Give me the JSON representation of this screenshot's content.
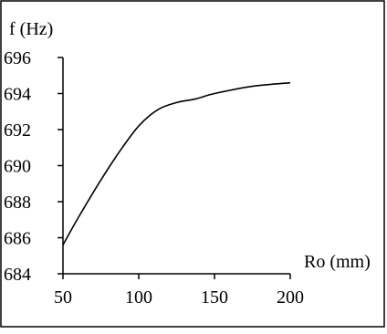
{
  "chart_data": {
    "type": "line",
    "title": "",
    "xlabel": "Ro (mm)",
    "ylabel": "f (Hz)",
    "xlim": [
      50,
      200
    ],
    "ylim": [
      684,
      696
    ],
    "xticks": [
      50,
      100,
      150,
      200
    ],
    "yticks": [
      684,
      686,
      688,
      690,
      692,
      694,
      696
    ],
    "xtick_labels": [
      "50",
      "100",
      "150",
      "200"
    ],
    "ytick_labels": [
      "684",
      "686",
      "688",
      "690",
      "692",
      "694",
      "696"
    ],
    "grid": false,
    "legend": "none",
    "series": [
      {
        "color": "#000000",
        "x": [
          50,
          60,
          75,
          87.5,
          100,
          112.5,
          125,
          137.5,
          150,
          175,
          200
        ],
        "y": [
          685.6,
          687.1,
          689.2,
          690.8,
          692.2,
          693.1,
          693.5,
          693.7,
          694.0,
          694.4,
          694.6
        ]
      }
    ]
  }
}
